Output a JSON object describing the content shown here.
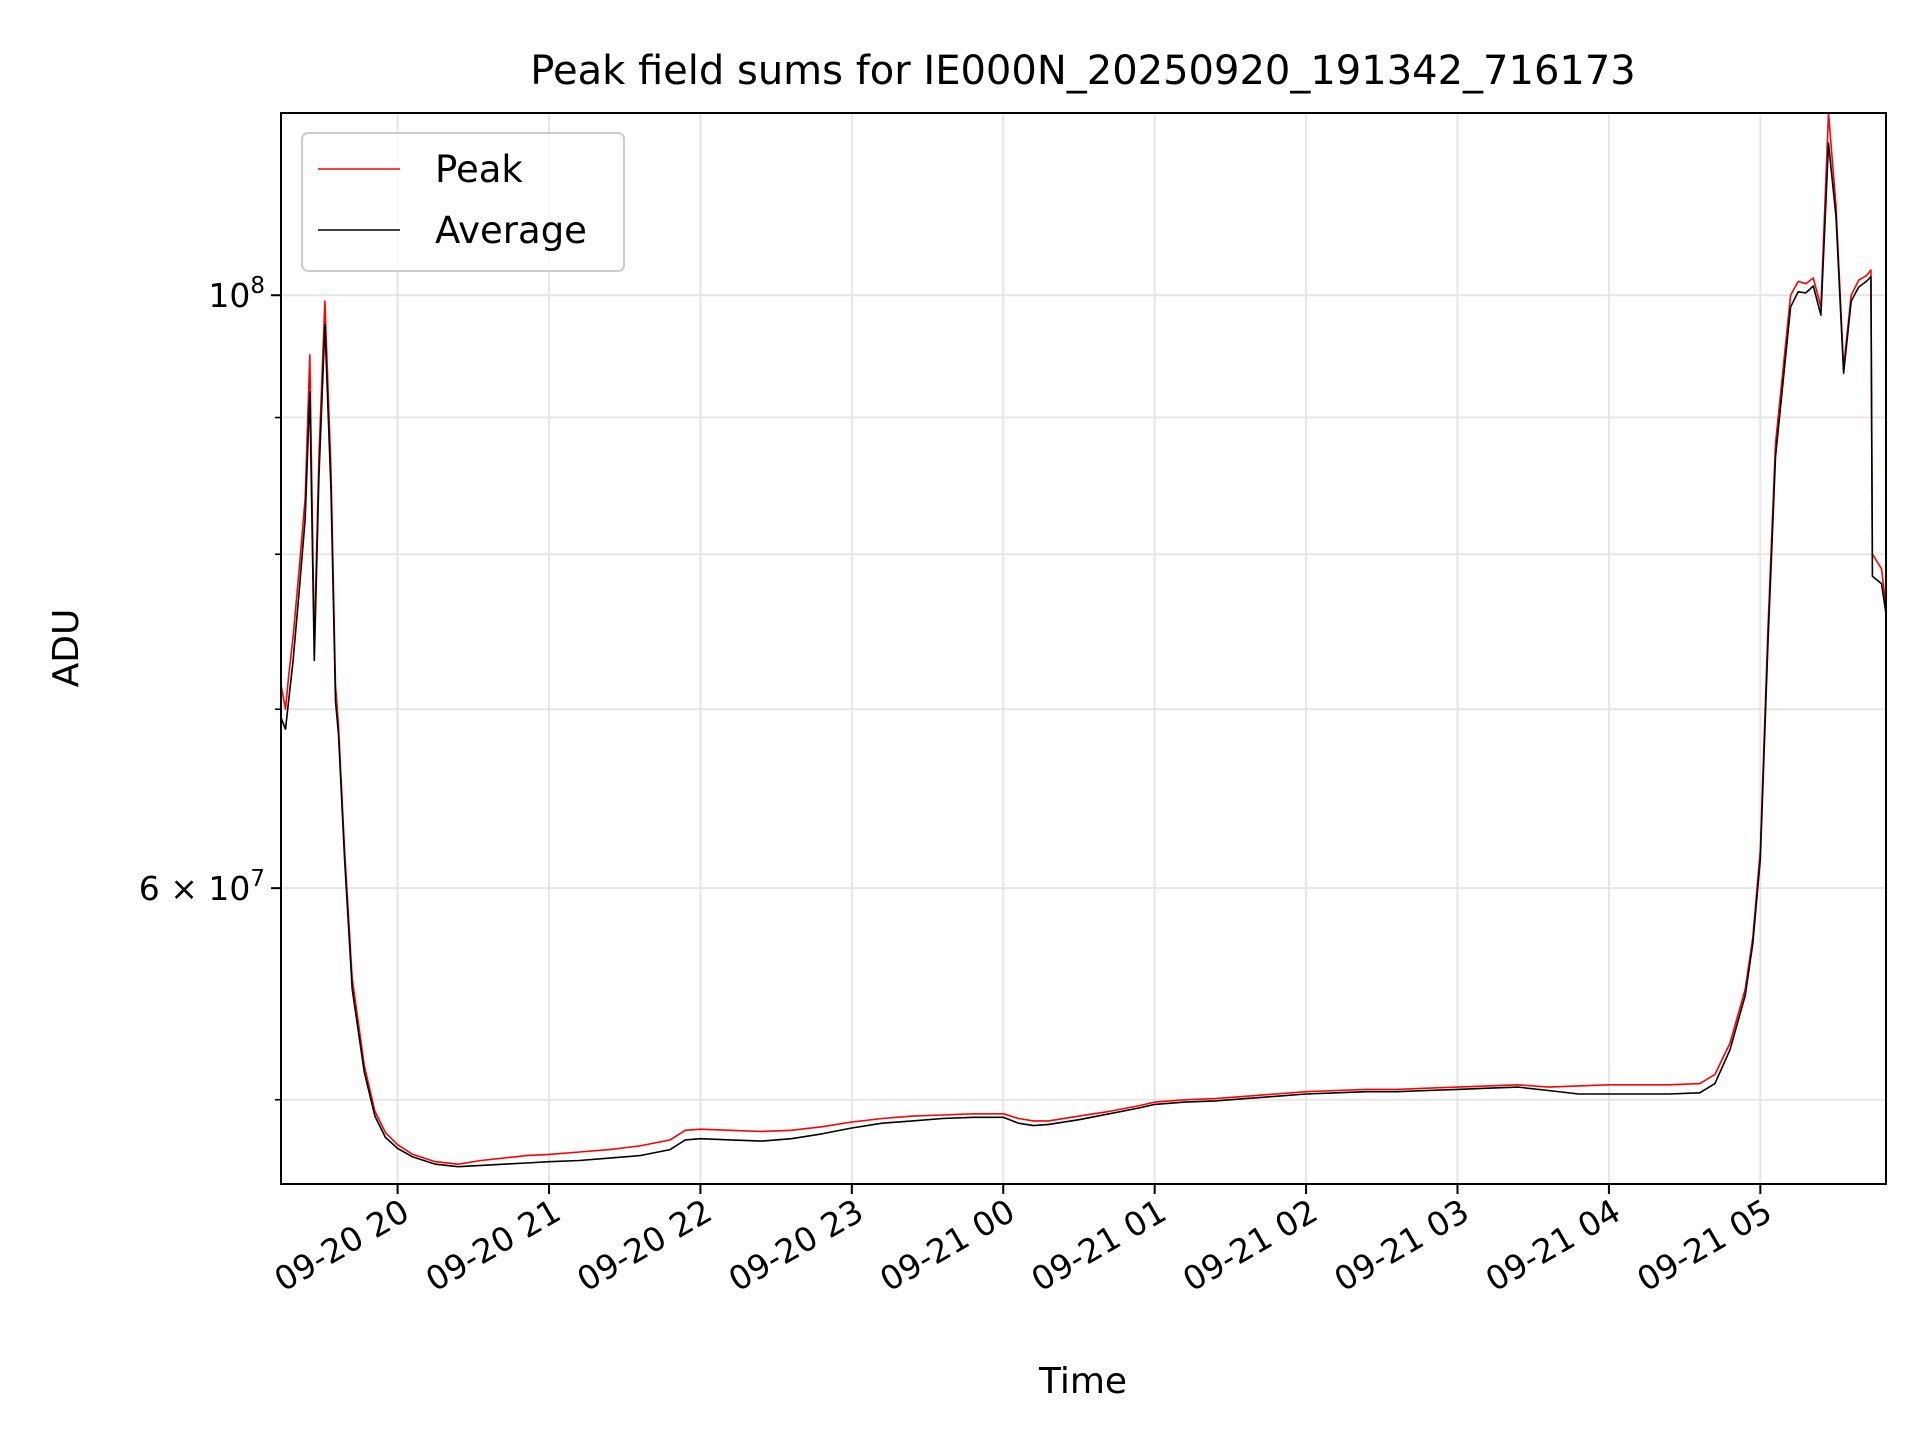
{
  "chart_data": {
    "type": "line",
    "title": "Peak field sums for IE000N_20250920_191342_716173",
    "xlabel": "Time",
    "ylabel": "ADU",
    "yscale": "log",
    "grid": true,
    "legend_position": "upper-left",
    "ylim": [
      46500000,
      117000000
    ],
    "xlim_hours": [
      19.23,
      29.83
    ],
    "x_units": "hours since 2025-09-20 00:00",
    "x_ticks": [
      {
        "hour": 20,
        "label": "09-20 20"
      },
      {
        "hour": 21,
        "label": "09-20 21"
      },
      {
        "hour": 22,
        "label": "09-20 22"
      },
      {
        "hour": 23,
        "label": "09-20 23"
      },
      {
        "hour": 24,
        "label": "09-21 00"
      },
      {
        "hour": 25,
        "label": "09-21 01"
      },
      {
        "hour": 26,
        "label": "09-21 02"
      },
      {
        "hour": 27,
        "label": "09-21 03"
      },
      {
        "hour": 28,
        "label": "09-21 04"
      },
      {
        "hour": 29,
        "label": "09-21 05"
      }
    ],
    "y_major_ticks": [
      {
        "value": 60000000,
        "base": "6",
        "exp": "7"
      },
      {
        "value": 100000000,
        "base": "10",
        "exp": "8"
      }
    ],
    "y_minor_ticks": [
      50000000,
      70000000,
      80000000,
      90000000
    ],
    "series": [
      {
        "name": "Peak",
        "color": "#ff0000",
        "x": [
          19.23,
          19.26,
          19.28,
          19.31,
          19.35,
          19.39,
          19.42,
          19.45,
          19.48,
          19.52,
          19.56,
          19.59,
          19.61,
          19.65,
          19.7,
          19.78,
          19.85,
          19.92,
          20.0,
          20.1,
          20.25,
          20.4,
          20.55,
          20.7,
          20.85,
          21.0,
          21.2,
          21.4,
          21.6,
          21.8,
          21.9,
          22.0,
          22.2,
          22.4,
          22.6,
          22.8,
          23.0,
          23.2,
          23.4,
          23.6,
          23.8,
          24.0,
          24.1,
          24.2,
          24.3,
          24.5,
          24.7,
          24.9,
          25.0,
          25.2,
          25.4,
          25.6,
          25.8,
          26.0,
          26.2,
          26.4,
          26.6,
          26.8,
          27.0,
          27.2,
          27.4,
          27.6,
          27.8,
          28.0,
          28.2,
          28.4,
          28.6,
          28.7,
          28.8,
          28.9,
          28.95,
          29.0,
          29.05,
          29.1,
          29.2,
          29.25,
          29.3,
          29.35,
          29.4,
          29.45,
          29.5,
          29.55,
          29.6,
          29.65,
          29.7,
          29.73,
          29.74,
          29.8,
          29.83
        ],
        "y": [
          71500000,
          70000000,
          72000000,
          74500000,
          79000000,
          84000000,
          95000000,
          74000000,
          87000000,
          99500000,
          86000000,
          71500000,
          69000000,
          62000000,
          55500000,
          51500000,
          49500000,
          48600000,
          48100000,
          47700000,
          47400000,
          47300000,
          47450000,
          47550000,
          47650000,
          47700000,
          47800000,
          47900000,
          48050000,
          48300000,
          48700000,
          48750000,
          48700000,
          48650000,
          48700000,
          48850000,
          49050000,
          49200000,
          49300000,
          49350000,
          49400000,
          49400000,
          49200000,
          49100000,
          49100000,
          49300000,
          49500000,
          49750000,
          49900000,
          50000000,
          50050000,
          50150000,
          50250000,
          50350000,
          50400000,
          50450000,
          50450000,
          50500000,
          50550000,
          50600000,
          50650000,
          50550000,
          50600000,
          50650000,
          50650000,
          50650000,
          50700000,
          51100000,
          52500000,
          55000000,
          57500000,
          62000000,
          75000000,
          88000000,
          100000000,
          101200000,
          101000000,
          101500000,
          99000000,
          117000000,
          108000000,
          94000000,
          100000000,
          101300000,
          101700000,
          102200000,
          80000000,
          79000000,
          76500000
        ]
      },
      {
        "name": "Average",
        "color": "#000000",
        "x": [
          19.23,
          19.26,
          19.28,
          19.31,
          19.35,
          19.39,
          19.42,
          19.45,
          19.48,
          19.52,
          19.56,
          19.59,
          19.61,
          19.65,
          19.7,
          19.78,
          19.85,
          19.92,
          20.0,
          20.1,
          20.25,
          20.4,
          20.55,
          20.7,
          20.85,
          21.0,
          21.2,
          21.4,
          21.6,
          21.8,
          21.9,
          22.0,
          22.2,
          22.4,
          22.6,
          22.8,
          23.0,
          23.2,
          23.4,
          23.6,
          23.8,
          24.0,
          24.1,
          24.2,
          24.3,
          24.5,
          24.7,
          24.9,
          25.0,
          25.2,
          25.4,
          25.6,
          25.8,
          26.0,
          26.2,
          26.4,
          26.6,
          26.8,
          27.0,
          27.2,
          27.4,
          27.6,
          27.8,
          28.0,
          28.2,
          28.4,
          28.6,
          28.7,
          28.8,
          28.9,
          28.95,
          29.0,
          29.05,
          29.1,
          29.2,
          29.25,
          29.3,
          29.35,
          29.4,
          29.45,
          29.5,
          29.55,
          29.6,
          29.65,
          29.7,
          29.73,
          29.74,
          29.8,
          29.83
        ],
        "y": [
          69500000,
          68800000,
          70500000,
          73000000,
          77500000,
          82500000,
          92000000,
          73000000,
          85500000,
          97500000,
          84500000,
          70500000,
          68500000,
          61500000,
          55000000,
          51200000,
          49300000,
          48400000,
          47950000,
          47600000,
          47300000,
          47200000,
          47250000,
          47300000,
          47350000,
          47400000,
          47450000,
          47550000,
          47650000,
          47900000,
          48300000,
          48350000,
          48300000,
          48250000,
          48350000,
          48550000,
          48800000,
          49000000,
          49100000,
          49200000,
          49250000,
          49250000,
          49000000,
          48900000,
          48950000,
          49150000,
          49400000,
          49650000,
          49800000,
          49900000,
          49950000,
          50050000,
          50150000,
          50250000,
          50300000,
          50350000,
          50350000,
          50400000,
          50450000,
          50500000,
          50550000,
          50400000,
          50250000,
          50250000,
          50250000,
          50250000,
          50300000,
          50700000,
          52200000,
          54700000,
          57200000,
          61500000,
          74000000,
          87000000,
          99000000,
          100300000,
          100200000,
          100800000,
          98300000,
          114000000,
          107000000,
          93500000,
          99500000,
          100700000,
          101200000,
          101600000,
          78500000,
          78000000,
          76000000
        ]
      }
    ]
  }
}
